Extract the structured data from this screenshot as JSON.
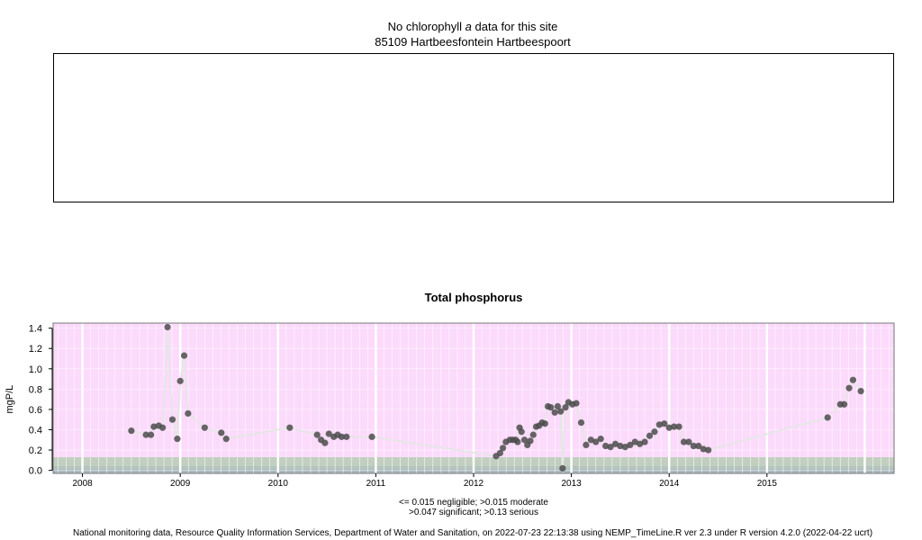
{
  "top_panel": {
    "title_prefix": "No chlorophyll",
    "title_italic": "a",
    "title_suffix": "data for this site",
    "site": "85109 Hartbeesfontein Hartbeespoort"
  },
  "chart_data": {
    "type": "scatter",
    "title": "Total phosphorus",
    "xlabel": "",
    "ylabel": "mgP/L",
    "xlim": [
      2007.7,
      2016.3
    ],
    "ylim": [
      -0.03,
      1.45
    ],
    "xticks": [
      "2008",
      "2009",
      "2010",
      "2011",
      "2012",
      "2013",
      "2014",
      "2015"
    ],
    "yticks": [
      "0.0",
      "0.2",
      "0.4",
      "0.6",
      "0.8",
      "1.0",
      "1.2",
      "1.4"
    ],
    "grid": true,
    "background_bands": [
      {
        "label": "negligible",
        "from": -0.03,
        "to": 0.015,
        "color": "#a9b9be"
      },
      {
        "label": "moderate",
        "from": 0.015,
        "to": 0.047,
        "color": "#b3c5bb"
      },
      {
        "label": "significant",
        "from": 0.047,
        "to": 0.13,
        "color": "#c2cfc0"
      },
      {
        "label": "serious",
        "from": 0.13,
        "to": 1.45,
        "color": "#fbdafb"
      }
    ],
    "series": [
      {
        "points": [
          [
            2008.5,
            0.39
          ],
          [
            2008.65,
            0.35
          ],
          [
            2008.7,
            0.35
          ],
          [
            2008.73,
            0.43
          ],
          [
            2008.78,
            0.44
          ],
          [
            2008.82,
            0.42
          ],
          [
            2008.87,
            1.41
          ],
          [
            2008.92,
            0.5
          ],
          [
            2008.97,
            0.31
          ],
          [
            2009.0,
            0.88
          ],
          [
            2009.04,
            1.13
          ],
          [
            2009.08,
            0.56
          ],
          [
            2009.25,
            0.42
          ],
          [
            2009.42,
            0.37
          ],
          [
            2009.47,
            0.31
          ],
          [
            2010.12,
            0.42
          ],
          [
            2010.4,
            0.35
          ],
          [
            2010.44,
            0.3
          ],
          [
            2010.48,
            0.27
          ],
          [
            2010.52,
            0.36
          ],
          [
            2010.57,
            0.33
          ],
          [
            2010.61,
            0.35
          ],
          [
            2010.65,
            0.33
          ],
          [
            2010.7,
            0.33
          ],
          [
            2010.96,
            0.33
          ],
          [
            2012.23,
            0.14
          ],
          [
            2012.27,
            0.17
          ],
          [
            2012.3,
            0.22
          ],
          [
            2012.33,
            0.28
          ],
          [
            2012.37,
            0.3
          ],
          [
            2012.4,
            0.3
          ],
          [
            2012.43,
            0.3
          ],
          [
            2012.45,
            0.28
          ],
          [
            2012.47,
            0.42
          ],
          [
            2012.49,
            0.38
          ],
          [
            2012.52,
            0.3
          ],
          [
            2012.55,
            0.25
          ],
          [
            2012.58,
            0.29
          ],
          [
            2012.61,
            0.35
          ],
          [
            2012.64,
            0.43
          ],
          [
            2012.67,
            0.44
          ],
          [
            2012.7,
            0.47
          ],
          [
            2012.73,
            0.46
          ],
          [
            2012.76,
            0.63
          ],
          [
            2012.79,
            0.62
          ],
          [
            2012.83,
            0.57
          ],
          [
            2012.86,
            0.63
          ],
          [
            2012.89,
            0.58
          ],
          [
            2012.91,
            0.02
          ],
          [
            2012.94,
            0.62
          ],
          [
            2012.97,
            0.67
          ],
          [
            2013.01,
            0.65
          ],
          [
            2013.05,
            0.66
          ],
          [
            2013.1,
            0.47
          ],
          [
            2013.15,
            0.25
          ],
          [
            2013.2,
            0.3
          ],
          [
            2013.25,
            0.28
          ],
          [
            2013.3,
            0.31
          ],
          [
            2013.35,
            0.24
          ],
          [
            2013.4,
            0.23
          ],
          [
            2013.45,
            0.26
          ],
          [
            2013.5,
            0.24
          ],
          [
            2013.55,
            0.23
          ],
          [
            2013.6,
            0.25
          ],
          [
            2013.65,
            0.28
          ],
          [
            2013.7,
            0.26
          ],
          [
            2013.75,
            0.28
          ],
          [
            2013.8,
            0.34
          ],
          [
            2013.85,
            0.38
          ],
          [
            2013.9,
            0.45
          ],
          [
            2013.95,
            0.46
          ],
          [
            2014.0,
            0.42
          ],
          [
            2014.05,
            0.43
          ],
          [
            2014.1,
            0.43
          ],
          [
            2014.15,
            0.28
          ],
          [
            2014.2,
            0.28
          ],
          [
            2014.25,
            0.24
          ],
          [
            2014.3,
            0.24
          ],
          [
            2014.35,
            0.21
          ],
          [
            2014.4,
            0.2
          ],
          [
            2015.62,
            0.52
          ],
          [
            2015.75,
            0.65
          ],
          [
            2015.79,
            0.65
          ],
          [
            2015.84,
            0.81
          ],
          [
            2015.88,
            0.89
          ],
          [
            2015.96,
            0.78
          ]
        ]
      }
    ],
    "point_color": "#4c4c4c",
    "line_color": "#e6e6e6"
  },
  "notes": {
    "line1": "<= 0.015 negligible; >0.015 moderate",
    "line2": ">0.047 significant; >0.13 serious"
  },
  "footer": "National monitoring data, Resource Quality Information Services, Department of Water and Sanitation, on 2022-07-23 22:13:38 using NEMP_TimeLine.R ver 2.3 under R version 4.2.0 (2022-04-22 ucrt)"
}
